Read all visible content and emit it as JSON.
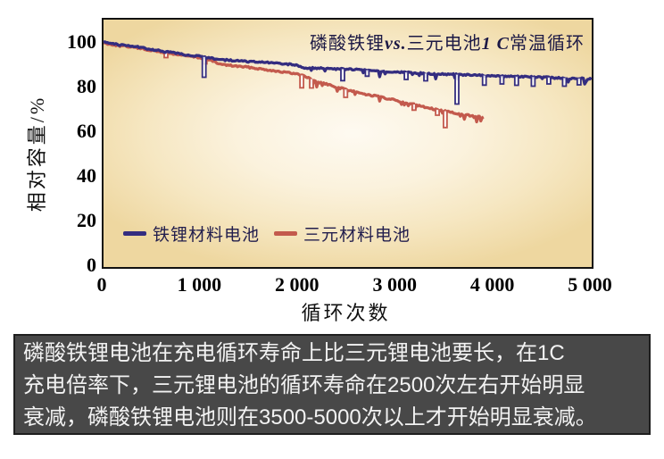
{
  "chart_data": {
    "type": "line",
    "title": "磷酸铁锂vs.三元电池1 C常温循环",
    "xlabel": "循环次数",
    "ylabel": "相对容量/%",
    "xlim": [
      0,
      5000
    ],
    "ylim": [
      0,
      110.8
    ],
    "grid": false,
    "legend_position": "inside-bottom-left",
    "xticks": [
      {
        "v": 0,
        "label": "0"
      },
      {
        "v": 1000,
        "label": "1 000"
      },
      {
        "v": 2000,
        "label": "2 000"
      },
      {
        "v": 3000,
        "label": "3 000"
      },
      {
        "v": 4000,
        "label": "4 000"
      },
      {
        "v": 5000,
        "label": "5 000"
      }
    ],
    "yticks": [
      {
        "v": 100,
        "label": "100"
      },
      {
        "v": 80,
        "label": "80"
      },
      {
        "v": 60,
        "label": "60"
      },
      {
        "v": 40,
        "label": "40"
      },
      {
        "v": 20,
        "label": "20"
      },
      {
        "v": 0,
        "label": "0"
      }
    ],
    "series": [
      {
        "name": "铁锂材料电池",
        "color": "#342d80",
        "dips_from": 2050,
        "points": [
          [
            0,
            101
          ],
          [
            150,
            99.6
          ],
          [
            300,
            99
          ],
          [
            450,
            97.8
          ],
          [
            600,
            96.6
          ],
          [
            750,
            95.7
          ],
          [
            900,
            94.7
          ],
          [
            1050,
            94
          ],
          [
            1200,
            92.9
          ],
          [
            1350,
            92.4
          ],
          [
            1500,
            92
          ],
          [
            1650,
            91.6
          ],
          [
            1800,
            91.2
          ],
          [
            1950,
            90.6
          ],
          [
            2060,
            89.2
          ],
          [
            2200,
            89
          ],
          [
            2400,
            88.7
          ],
          [
            2600,
            88.4
          ],
          [
            2800,
            87.9
          ],
          [
            3000,
            87.4
          ],
          [
            3200,
            86.9
          ],
          [
            3400,
            86.5
          ],
          [
            3600,
            86.2
          ],
          [
            3800,
            85.9
          ],
          [
            4000,
            85.6
          ],
          [
            4200,
            85.3
          ],
          [
            4400,
            85.1
          ],
          [
            4600,
            84.8
          ],
          [
            4800,
            84.5
          ],
          [
            5000,
            84.3
          ]
        ],
        "spikes": [
          [
            1030,
            85
          ],
          [
            2450,
            83.5
          ],
          [
            2700,
            85.5
          ],
          [
            3100,
            84
          ],
          [
            3300,
            83.4
          ],
          [
            3620,
            73
          ],
          [
            3900,
            81.5
          ],
          [
            4080,
            82
          ],
          [
            4230,
            81.4
          ],
          [
            4400,
            81
          ],
          [
            4560,
            82
          ],
          [
            4720,
            81
          ],
          [
            4870,
            81.6
          ]
        ]
      },
      {
        "name": "三元材料电池",
        "color": "#c35a4d",
        "dips_from": 2000,
        "points": [
          [
            0,
            100.4
          ],
          [
            150,
            99.2
          ],
          [
            300,
            98.6
          ],
          [
            450,
            97.3
          ],
          [
            600,
            96.2
          ],
          [
            750,
            95.2
          ],
          [
            900,
            94.3
          ],
          [
            1050,
            93.3
          ],
          [
            1200,
            90.8
          ],
          [
            1350,
            90
          ],
          [
            1500,
            89.4
          ],
          [
            1650,
            88.5
          ],
          [
            1800,
            87.6
          ],
          [
            2000,
            86.3
          ],
          [
            2100,
            84.8
          ],
          [
            2200,
            82.8
          ],
          [
            2300,
            81.7
          ],
          [
            2400,
            80.5
          ],
          [
            2500,
            79.3
          ],
          [
            2600,
            78.2
          ],
          [
            2800,
            76.4
          ],
          [
            3000,
            74.6
          ],
          [
            3200,
            72.6
          ],
          [
            3400,
            70.6
          ],
          [
            3500,
            69.8
          ],
          [
            3600,
            69
          ],
          [
            3700,
            68.2
          ],
          [
            3800,
            67.5
          ],
          [
            3900,
            67
          ]
        ],
        "spikes": [
          [
            640,
            93.8
          ],
          [
            1040,
            91
          ],
          [
            2030,
            80.3
          ],
          [
            2130,
            80.2
          ],
          [
            2480,
            76
          ],
          [
            3180,
            70.3
          ],
          [
            3420,
            68
          ],
          [
            3500,
            62.5
          ]
        ]
      }
    ]
  },
  "title_segments": {
    "pre": "磷酸铁锂",
    "vs": "vs.",
    "mid": "三元电池",
    "rate": "1 C",
    "post": "常温循环"
  },
  "caption": {
    "lines": [
      "磷酸铁锂电池在充电循环寿命上比三元锂电池要长，在1C",
      "充电倍率下，三元锂电池的循环寿命在2500次左右开始明显",
      "衰减，磷酸铁锂电池则在3500-5000次以上才开始明显衰减。"
    ]
  },
  "colors": {
    "plot_bg_center": "#fefaf1",
    "plot_bg_edge": "#eed7a0",
    "plot_border": "#111111",
    "lfp_line": "#342d80",
    "ternary_line": "#c35a4d",
    "caption_bg": "#484848",
    "caption_text": "#f2f2f2",
    "tick_text": "#000000",
    "title_text": "#1c1945"
  }
}
